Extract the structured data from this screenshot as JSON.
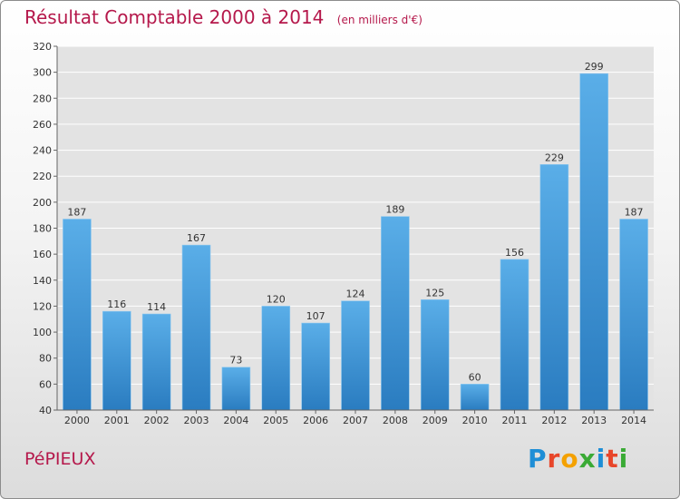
{
  "title": "Résultat Comptable 2000 à 2014",
  "subtitle": "(en milliers d'€)",
  "commune": "PéPIEUX",
  "logo": {
    "letters": [
      "P",
      "r",
      "o",
      "x",
      "i",
      "t",
      "i"
    ],
    "colors": [
      "#1e8ed6",
      "#e8462a",
      "#f4a100",
      "#3aaa35",
      "#1e8ed6",
      "#e8462a",
      "#3aaa35"
    ]
  },
  "colors": {
    "bar_top": "#5aaee8",
    "bar_bottom": "#2a7cc0",
    "title": "#b5184b",
    "grid": "#ffffff",
    "plot_bg": "#e3e3e3"
  },
  "chart_data": {
    "type": "bar",
    "title": "Résultat Comptable 2000 à 2014",
    "ylabel": "(en milliers d'€)",
    "categories": [
      "2000",
      "2001",
      "2002",
      "2003",
      "2004",
      "2005",
      "2006",
      "2007",
      "2008",
      "2009",
      "2010",
      "2011",
      "2012",
      "2013",
      "2014"
    ],
    "values": [
      187,
      116,
      114,
      167,
      73,
      120,
      107,
      124,
      189,
      125,
      60,
      156,
      229,
      299,
      187
    ],
    "ylim": [
      40,
      320
    ],
    "yticks": [
      40,
      60,
      80,
      100,
      120,
      140,
      160,
      180,
      200,
      220,
      240,
      260,
      280,
      300,
      320
    ],
    "grid": true
  }
}
